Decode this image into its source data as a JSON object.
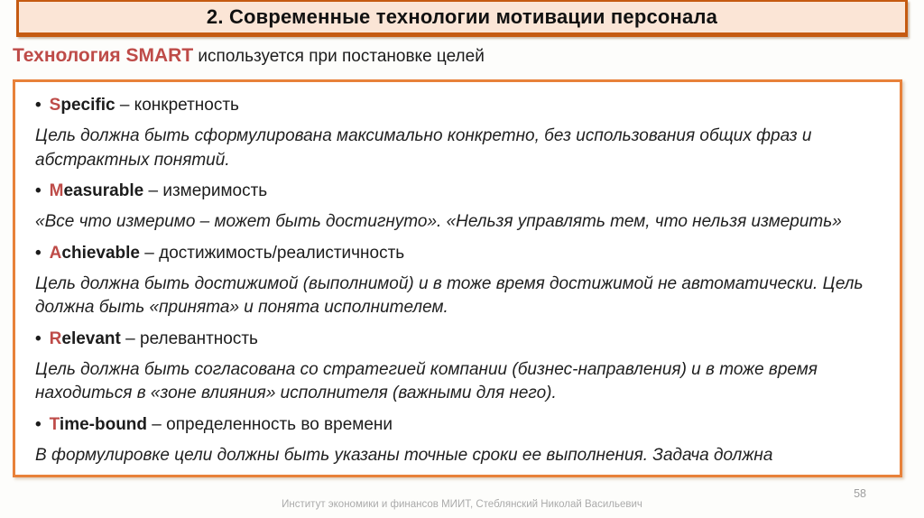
{
  "header": {
    "title": "2. Современные технологии мотивации персонала"
  },
  "subtitle": {
    "highlight": "Технология SMART",
    "rest": " используется при постановке целей"
  },
  "smart_box": {
    "items": [
      {
        "letter": "S",
        "term_rest": "pecific",
        "definition": " – конкретность",
        "description": "Цель должна быть сформулирована максимально конкретно, без использования общих фраз и абстрактных понятий."
      },
      {
        "letter": "M",
        "term_rest": "easurable",
        "definition": " – измеримость",
        "description": "«Все что измеримо – может быть достигнуто». «Нельзя управлять тем, что нельзя измерить»"
      },
      {
        "letter": "A",
        "term_rest": "chievable",
        "definition": " – достижимость/реалистичность",
        "description": "Цель должна быть достижимой (выполнимой) и в тоже время достижимой не автоматически. Цель должна быть «принята» и понята исполнителем."
      },
      {
        "letter": "R",
        "term_rest": "elevant",
        "definition": " – релевантность",
        "description": "Цель должна быть согласована со стратегией компании (бизнес-направления) и в тоже время находиться в «зоне влияния» исполнителя (важными для него)."
      },
      {
        "letter": "T",
        "term_rest": "ime-bound",
        "definition": " – определенность во времени",
        "description": "В формулировке цели должны быть указаны точные сроки ее выполнения. Задача должна «мониториться» в процессе ее реализации."
      }
    ]
  },
  "footer": {
    "credit": "Институт экономики и финансов МИИТ, Стеблянский Николай Васильевич",
    "page_number": "58"
  },
  "colors": {
    "accent_red": "#be4b48",
    "header_background": "#fbe5d6",
    "header_border": "#c55a11",
    "box_border": "#e8813a",
    "footer_gray": "#ababab"
  }
}
